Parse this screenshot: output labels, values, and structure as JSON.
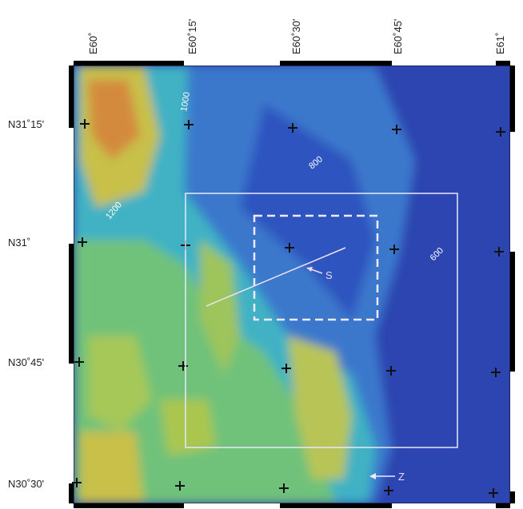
{
  "map": {
    "longitudes": [
      "E60˚",
      "E60˚15'",
      "E60˚30'",
      "E60˚45'",
      "E61˚"
    ],
    "latitudes": [
      "N31˚15'",
      "N31˚",
      "N30˚45'",
      "N30˚30'"
    ],
    "contours": [
      "1000",
      "800",
      "1200",
      "600"
    ],
    "annotations": [
      "S",
      "Z"
    ]
  }
}
